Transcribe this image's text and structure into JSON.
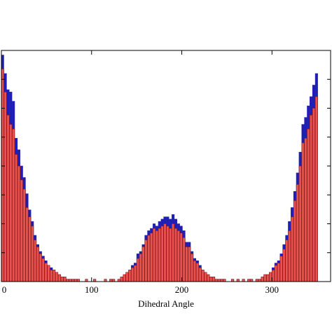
{
  "chart_data": {
    "type": "bar",
    "title": "",
    "xlabel": "Dihedral Angle",
    "ylabel": "",
    "xlim": [
      0,
      365
    ],
    "ylim": [
      0,
      1
    ],
    "xticks": [
      0,
      100,
      200,
      300
    ],
    "xtick_labels": [
      "0",
      "100",
      "200",
      "300"
    ],
    "bin_width": 3,
    "series": [
      {
        "color": "#1f1fb4",
        "fill": "#1f1fb4",
        "values": [
          0.98,
          0.9,
          0.83,
          0.82,
          0.78,
          0.62,
          0.57,
          0.5,
          0.45,
          0.38,
          0.31,
          0.26,
          0.2,
          0.16,
          0.13,
          0.11,
          0.09,
          0.07,
          0.06,
          0.05,
          0.04,
          0.03,
          0.02,
          0.02,
          0.01,
          0.01,
          0.01,
          0.01,
          0.01,
          0.0,
          0.0,
          0.01,
          0.0,
          0.0,
          0.01,
          0.0,
          0.0,
          0.0,
          0.01,
          0.0,
          0.01,
          0.01,
          0.0,
          0.01,
          0.02,
          0.03,
          0.04,
          0.05,
          0.07,
          0.08,
          0.12,
          0.13,
          0.16,
          0.2,
          0.22,
          0.23,
          0.25,
          0.24,
          0.26,
          0.27,
          0.28,
          0.28,
          0.27,
          0.29,
          0.27,
          0.25,
          0.24,
          0.22,
          0.17,
          0.17,
          0.13,
          0.1,
          0.09,
          0.07,
          0.05,
          0.04,
          0.03,
          0.02,
          0.02,
          0.01,
          0.01,
          0.01,
          0.01,
          0.0,
          0.0,
          0.01,
          0.0,
          0.01,
          0.0,
          0.01,
          0.0,
          0.01,
          0.01,
          0.0,
          0.01,
          0.01,
          0.02,
          0.03,
          0.03,
          0.04,
          0.06,
          0.08,
          0.09,
          0.12,
          0.16,
          0.2,
          0.26,
          0.32,
          0.39,
          0.47,
          0.56,
          0.68,
          0.71,
          0.76,
          0.8,
          0.85,
          0.9
        ]
      },
      {
        "color": "#8b1a1a",
        "fill": "#e8524f",
        "values": [
          0.92,
          0.82,
          0.72,
          0.68,
          0.66,
          0.55,
          0.5,
          0.44,
          0.4,
          0.32,
          0.28,
          0.24,
          0.18,
          0.15,
          0.12,
          0.1,
          0.08,
          0.07,
          0.05,
          0.05,
          0.04,
          0.03,
          0.02,
          0.02,
          0.01,
          0.01,
          0.01,
          0.01,
          0.01,
          0.0,
          0.0,
          0.01,
          0.0,
          0.0,
          0.01,
          0.0,
          0.0,
          0.0,
          0.01,
          0.0,
          0.01,
          0.01,
          0.0,
          0.01,
          0.02,
          0.03,
          0.04,
          0.05,
          0.06,
          0.07,
          0.1,
          0.12,
          0.15,
          0.18,
          0.2,
          0.21,
          0.23,
          0.22,
          0.23,
          0.24,
          0.25,
          0.24,
          0.23,
          0.25,
          0.23,
          0.22,
          0.21,
          0.19,
          0.15,
          0.15,
          0.12,
          0.09,
          0.08,
          0.06,
          0.05,
          0.04,
          0.03,
          0.02,
          0.02,
          0.01,
          0.01,
          0.01,
          0.01,
          0.0,
          0.0,
          0.01,
          0.0,
          0.01,
          0.0,
          0.01,
          0.0,
          0.01,
          0.01,
          0.0,
          0.01,
          0.01,
          0.02,
          0.03,
          0.03,
          0.04,
          0.05,
          0.07,
          0.08,
          0.11,
          0.14,
          0.18,
          0.22,
          0.28,
          0.35,
          0.42,
          0.5,
          0.6,
          0.62,
          0.66,
          0.72,
          0.75,
          0.8
        ]
      }
    ],
    "grid": false,
    "legend": "none"
  }
}
